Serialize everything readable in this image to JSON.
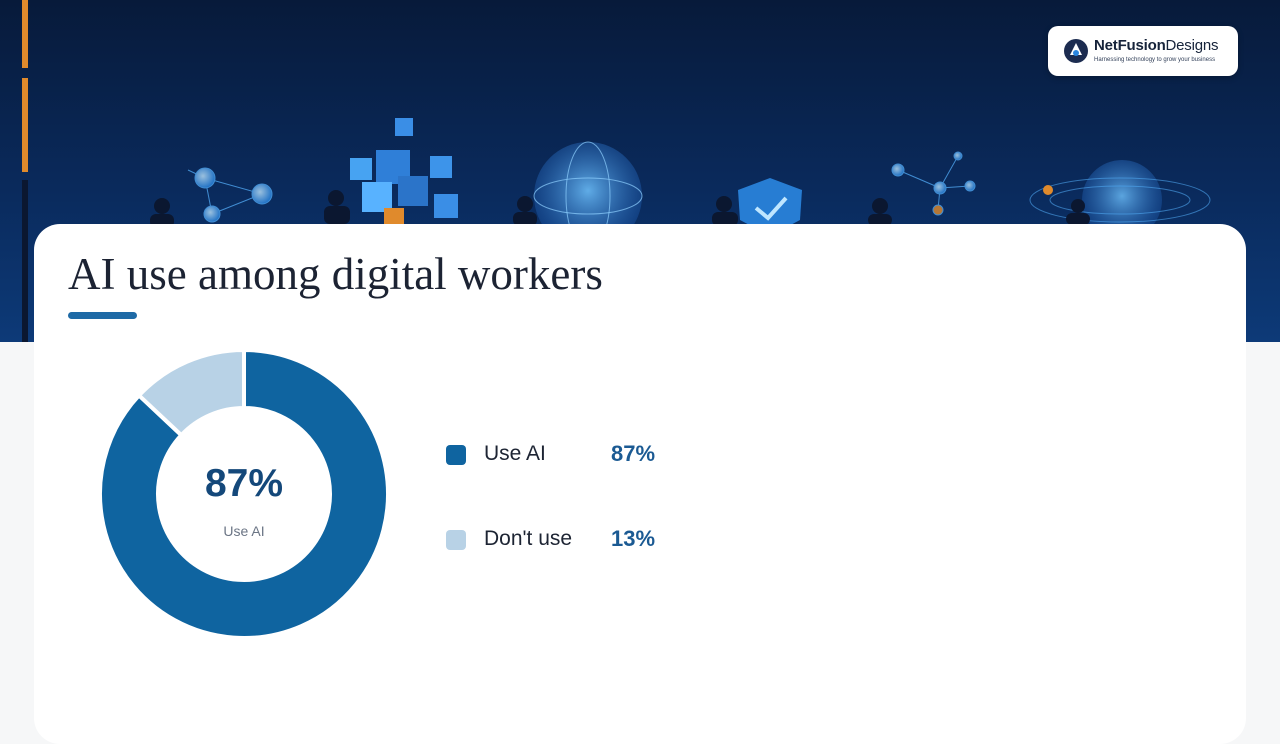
{
  "header": {
    "logo": {
      "name_bold": "NetFusion",
      "name_light": "Designs",
      "tagline": "Harnessing technology to grow your business"
    }
  },
  "colors": {
    "primary": "#0f64a0",
    "secondary": "#b8d2e6",
    "accent_orange": "#e08a2c",
    "hero_bg": "#0a2a5c"
  },
  "chart_data": {
    "type": "pie",
    "title": "AI use among digital workers",
    "center_value": "87%",
    "center_label": "Use AI",
    "series": [
      {
        "name": "Use AI",
        "value": 87,
        "value_label": "87%",
        "color": "#0f64a0"
      },
      {
        "name": "Don't use",
        "value": 13,
        "value_label": "13%",
        "color": "#b8d2e6"
      }
    ],
    "legend_position": "right"
  }
}
